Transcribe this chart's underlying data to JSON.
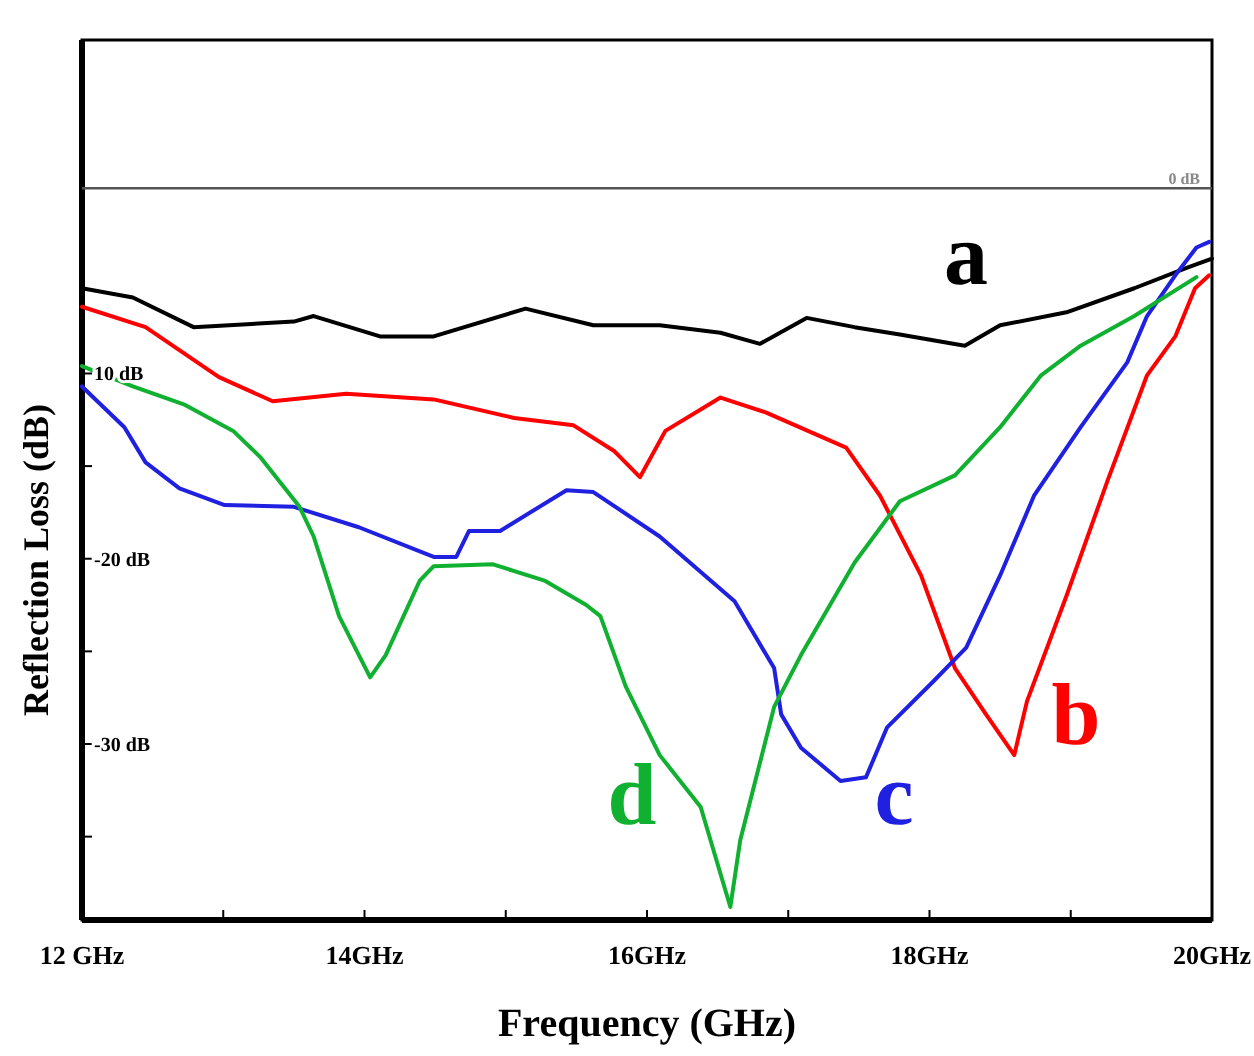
{
  "chart_data": {
    "type": "line",
    "xlabel": "Frequency (GHz)",
    "ylabel": "Reflection Loss (dB)",
    "xlim": [
      12,
      20
    ],
    "ylim": [
      -39.5,
      8
    ],
    "xticks": [
      {
        "value": 12,
        "label": "12 GHz"
      },
      {
        "value": 13,
        "label": null
      },
      {
        "value": 14,
        "label": "14GHz"
      },
      {
        "value": 15,
        "label": null
      },
      {
        "value": 16,
        "label": "16GHz"
      },
      {
        "value": 17,
        "label": null
      },
      {
        "value": 18,
        "label": "18GHz"
      },
      {
        "value": 19,
        "label": null
      },
      {
        "value": 20,
        "label": "20GHz"
      }
    ],
    "yticks": [
      {
        "value": -10,
        "label": "10 dB"
      },
      {
        "value": -15,
        "label": null
      },
      {
        "value": -20,
        "label": "-20 dB"
      },
      {
        "value": -25,
        "label": null
      },
      {
        "value": -30,
        "label": "-30 dB"
      },
      {
        "value": -35,
        "label": null
      }
    ],
    "grid": false,
    "legend": false,
    "marker": "none",
    "line_style": "solid",
    "ref_lines": [
      {
        "axis": "y",
        "value": 0,
        "label": "0 dB",
        "color": "#555555"
      }
    ],
    "series": [
      {
        "name": "a",
        "color": "#000000",
        "x": [
          12,
          12.36,
          12.79,
          13.5,
          13.64,
          14.11,
          14.49,
          15.14,
          15.62,
          16.09,
          16.52,
          16.8,
          17.13,
          17.47,
          17.79,
          18.25,
          18.5,
          18.97,
          19.45,
          19.82,
          20
        ],
        "values": [
          -5.4,
          -5.9,
          -7.5,
          -7.2,
          -6.9,
          -8.0,
          -8.0,
          -6.5,
          -7.4,
          -7.4,
          -7.8,
          -8.4,
          -7.0,
          -7.5,
          -7.9,
          -8.5,
          -7.4,
          -6.7,
          -5.4,
          -4.3,
          -3.8
        ]
      },
      {
        "name": "b",
        "color": "#ff0000",
        "x": [
          12,
          12.45,
          12.97,
          13.35,
          13.87,
          14.49,
          15.06,
          15.48,
          15.77,
          15.95,
          16.13,
          16.52,
          16.84,
          17.41,
          17.65,
          17.94,
          18.18,
          18.4,
          18.6,
          18.69,
          18.97,
          19.26,
          19.54,
          19.74,
          19.88,
          19.98
        ],
        "values": [
          -6.4,
          -7.5,
          -10.2,
          -11.5,
          -11.1,
          -11.4,
          -12.4,
          -12.8,
          -14.2,
          -15.6,
          -13.1,
          -11.3,
          -12.1,
          -14.0,
          -16.6,
          -20.9,
          -25.9,
          -28.4,
          -30.6,
          -27.7,
          -22.0,
          -15.8,
          -10.1,
          -8.0,
          -5.4,
          -4.7
        ]
      },
      {
        "name": "c",
        "color": "#2020e0",
        "x": [
          12,
          12.3,
          12.45,
          12.69,
          13.01,
          13.5,
          13.96,
          14.49,
          14.65,
          14.74,
          14.96,
          15.43,
          15.62,
          16.09,
          16.62,
          16.9,
          16.95,
          17.09,
          17.37,
          17.55,
          17.7,
          18.03,
          18.26,
          18.5,
          18.74,
          19.07,
          19.4,
          19.54,
          19.74,
          19.89,
          19.98
        ],
        "values": [
          -10.7,
          -12.9,
          -14.8,
          -16.2,
          -17.1,
          -17.2,
          -18.3,
          -19.9,
          -19.9,
          -18.5,
          -18.5,
          -16.3,
          -16.4,
          -18.8,
          -22.3,
          -25.9,
          -28.4,
          -30.2,
          -32.0,
          -31.8,
          -29.1,
          -26.6,
          -24.8,
          -20.9,
          -16.6,
          -12.9,
          -9.4,
          -6.9,
          -4.7,
          -3.2,
          -2.9
        ]
      },
      {
        "name": "d",
        "color": "#10b030",
        "x": [
          12,
          12.36,
          12.73,
          13.07,
          13.26,
          13.54,
          13.64,
          13.82,
          14.04,
          14.15,
          14.39,
          14.49,
          14.91,
          15.28,
          15.57,
          15.67,
          15.85,
          16.09,
          16.38,
          16.59,
          16.66,
          16.9,
          17.09,
          17.47,
          17.79,
          18.18,
          18.5,
          18.79,
          19.07,
          19.45,
          19.89
        ],
        "values": [
          -9.6,
          -10.7,
          -11.7,
          -13.1,
          -14.5,
          -17.2,
          -18.8,
          -23.1,
          -26.4,
          -25.2,
          -21.2,
          -20.4,
          -20.3,
          -21.2,
          -22.5,
          -23.1,
          -26.9,
          -30.6,
          -33.4,
          -38.8,
          -35.2,
          -28.0,
          -25.2,
          -20.2,
          -16.9,
          -15.5,
          -12.9,
          -10.1,
          -8.5,
          -6.9,
          -4.8
        ]
      }
    ]
  }
}
